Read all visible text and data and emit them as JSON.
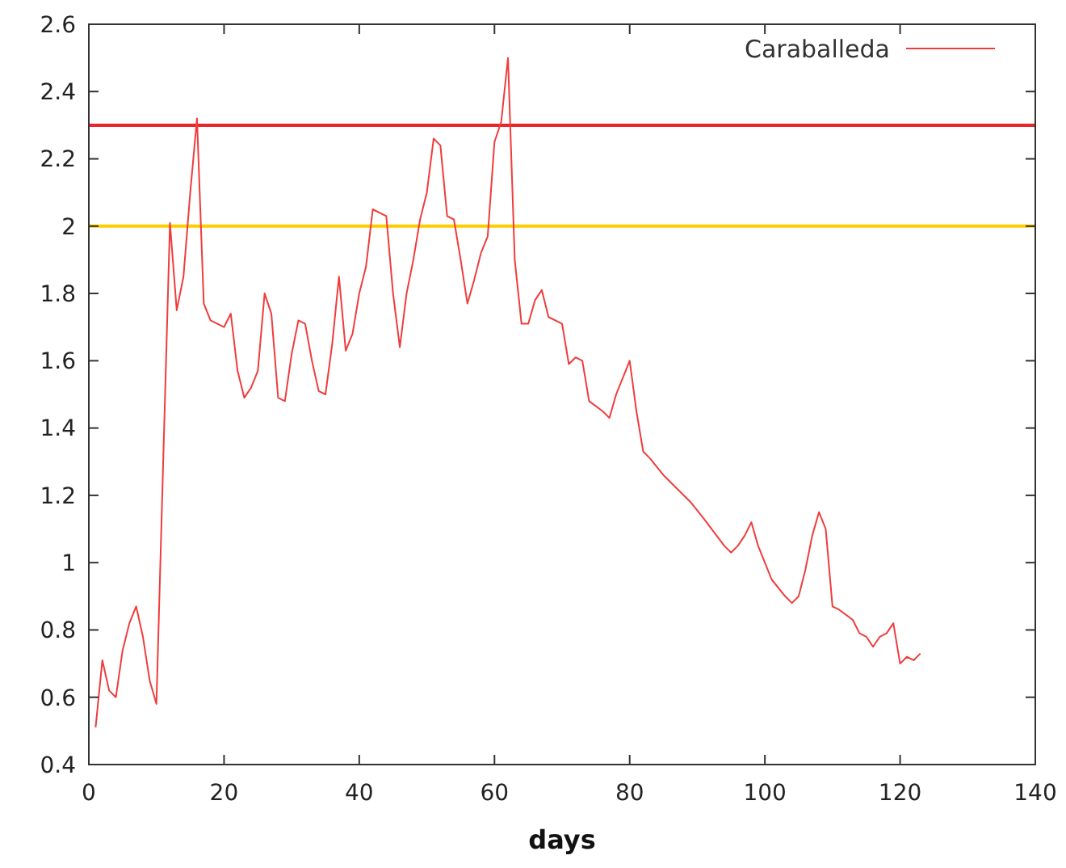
{
  "chart_data": {
    "type": "line",
    "xlabel": "days",
    "legend": "top right",
    "grid": false,
    "xlim": [
      0,
      140
    ],
    "xticks": [
      0,
      20,
      40,
      60,
      80,
      100,
      120,
      140
    ],
    "ylim": [
      0.4,
      2.6
    ],
    "yticks": [
      0.4,
      0.6,
      0.8,
      1,
      1.2,
      1.4,
      1.6,
      1.8,
      2,
      2.2,
      2.4,
      2.6
    ],
    "ref_lines": [
      {
        "axis": "y",
        "value": 2.3,
        "color": "#e8262a"
      },
      {
        "axis": "y",
        "value": 2,
        "color": "#ffcc00"
      }
    ],
    "series": [
      {
        "name": "Caraballeda",
        "color": "#f03c3c",
        "x": [
          1,
          2,
          3,
          4,
          5,
          6,
          7,
          8,
          9,
          10,
          11,
          12,
          13,
          14,
          15,
          16,
          17,
          18,
          19,
          20,
          21,
          22,
          23,
          24,
          25,
          26,
          27,
          28,
          29,
          30,
          31,
          32,
          33,
          34,
          35,
          36,
          37,
          38,
          39,
          40,
          41,
          42,
          44,
          45,
          46,
          47,
          48,
          49,
          50,
          51,
          52,
          53,
          54,
          55,
          56,
          57,
          58,
          59,
          60,
          61,
          62,
          63,
          64,
          65,
          66,
          67,
          68,
          70,
          71,
          72,
          73,
          74,
          76,
          77,
          78,
          80,
          81,
          82,
          83,
          85,
          89,
          91,
          94,
          95,
          96,
          97,
          98,
          99,
          100,
          101,
          103,
          104,
          105,
          106,
          107,
          108,
          109,
          110,
          111,
          113,
          114,
          115,
          116,
          117,
          118,
          119,
          120,
          121,
          122,
          123
        ],
        "values": [
          0.51,
          0.71,
          0.62,
          0.6,
          0.74,
          0.82,
          0.87,
          0.78,
          0.65,
          0.58,
          1.3,
          2.01,
          1.75,
          1.85,
          2.1,
          2.32,
          1.77,
          1.72,
          1.71,
          1.7,
          1.74,
          1.57,
          1.49,
          1.52,
          1.57,
          1.8,
          1.74,
          1.49,
          1.48,
          1.62,
          1.72,
          1.71,
          1.6,
          1.51,
          1.5,
          1.65,
          1.85,
          1.63,
          1.68,
          1.8,
          1.88,
          2.05,
          2.03,
          1.8,
          1.64,
          1.8,
          1.9,
          2.02,
          2.1,
          2.26,
          2.24,
          2.03,
          2.02,
          1.9,
          1.77,
          1.84,
          1.92,
          1.97,
          2.25,
          2.31,
          2.5,
          1.9,
          1.71,
          1.71,
          1.78,
          1.81,
          1.73,
          1.71,
          1.59,
          1.61,
          1.6,
          1.48,
          1.45,
          1.43,
          1.5,
          1.6,
          1.45,
          1.33,
          1.31,
          1.26,
          1.18,
          1.13,
          1.05,
          1.03,
          1.05,
          1.08,
          1.12,
          1.05,
          1,
          0.95,
          0.9,
          0.88,
          0.9,
          0.98,
          1.08,
          1.15,
          1.1,
          0.87,
          0.86,
          0.83,
          0.79,
          0.78,
          0.75,
          0.78,
          0.79,
          0.82,
          0.7,
          0.72,
          0.71,
          0.73
        ]
      }
    ]
  }
}
